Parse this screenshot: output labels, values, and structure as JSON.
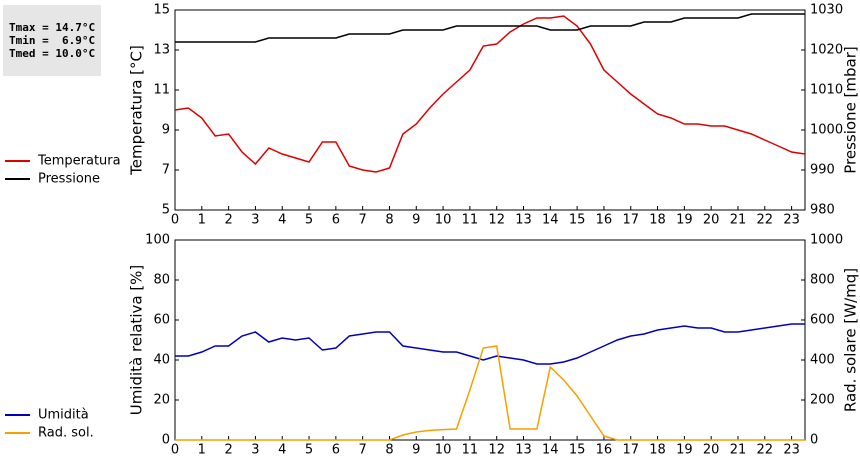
{
  "stats": [
    "Tmax = 14.7°C",
    "Tmin =  6.9°C",
    "Tmed = 10.0°C"
  ],
  "chart_data": [
    {
      "type": "line",
      "x": [
        0,
        0.5,
        1,
        1.5,
        2,
        2.5,
        3,
        3.5,
        4,
        4.5,
        5,
        5.5,
        6,
        6.5,
        7,
        7.5,
        8,
        8.5,
        9,
        9.5,
        10,
        10.5,
        11,
        11.5,
        12,
        12.5,
        13,
        13.5,
        14,
        14.5,
        15,
        15.5,
        16,
        16.5,
        17,
        17.5,
        18,
        18.5,
        19,
        19.5,
        20,
        20.5,
        21,
        21.5,
        22,
        22.5,
        23,
        23.5
      ],
      "xlim": [
        0,
        23.5
      ],
      "xticks": [
        0,
        1,
        2,
        3,
        4,
        5,
        6,
        7,
        8,
        9,
        10,
        11,
        12,
        13,
        14,
        15,
        16,
        17,
        18,
        19,
        20,
        21,
        22,
        23
      ],
      "ylabel": "Temperatura [°C]",
      "ylim": [
        5,
        15
      ],
      "yticks": [
        5,
        7,
        9,
        11,
        13,
        15
      ],
      "y2label": "Pressione [mbar]",
      "y2lim": [
        980,
        1030
      ],
      "y2ticks": [
        980,
        990,
        1000,
        1010,
        1020,
        1030
      ],
      "series": [
        {
          "name": "Temperatura",
          "color": "#dd0000",
          "axis": "y",
          "values": [
            10.0,
            10.1,
            9.6,
            8.7,
            8.8,
            7.9,
            7.3,
            8.1,
            7.8,
            7.6,
            7.4,
            8.4,
            8.4,
            7.2,
            7.0,
            6.9,
            7.1,
            8.8,
            9.3,
            10.1,
            10.8,
            11.4,
            12.0,
            13.2,
            13.3,
            13.9,
            14.3,
            14.6,
            14.6,
            14.7,
            14.2,
            13.3,
            12.0,
            11.4,
            10.8,
            10.3,
            9.8,
            9.6,
            9.3,
            9.3,
            9.2,
            9.2,
            9.0,
            8.8,
            8.5,
            8.2,
            7.9,
            7.8
          ]
        },
        {
          "name": "Pressione",
          "color": "#000000",
          "axis": "y2",
          "values": [
            1022,
            1022,
            1022,
            1022,
            1022,
            1022,
            1022,
            1023,
            1023,
            1023,
            1023,
            1023,
            1023,
            1024,
            1024,
            1024,
            1024,
            1025,
            1025,
            1025,
            1025,
            1026,
            1026,
            1026,
            1026,
            1026,
            1026,
            1026,
            1025,
            1025,
            1025,
            1026,
            1026,
            1026,
            1026,
            1027,
            1027,
            1027,
            1028,
            1028,
            1028,
            1028,
            1028,
            1029,
            1029,
            1029,
            1029,
            1029
          ]
        }
      ]
    },
    {
      "type": "line",
      "x": [
        0,
        0.5,
        1,
        1.5,
        2,
        2.5,
        3,
        3.5,
        4,
        4.5,
        5,
        5.5,
        6,
        6.5,
        7,
        7.5,
        8,
        8.5,
        9,
        9.5,
        10,
        10.5,
        11,
        11.5,
        12,
        12.5,
        13,
        13.5,
        14,
        14.5,
        15,
        15.5,
        16,
        16.5,
        17,
        17.5,
        18,
        18.5,
        19,
        19.5,
        20,
        20.5,
        21,
        21.5,
        22,
        22.5,
        23,
        23.5
      ],
      "xlim": [
        0,
        23.5
      ],
      "xticks": [
        0,
        1,
        2,
        3,
        4,
        5,
        6,
        7,
        8,
        9,
        10,
        11,
        12,
        13,
        14,
        15,
        16,
        17,
        18,
        19,
        20,
        21,
        22,
        23
      ],
      "ylabel": "Umidità relativa [%]",
      "ylim": [
        0,
        100
      ],
      "yticks": [
        0,
        20,
        40,
        60,
        80,
        100
      ],
      "y2label": "Rad. solare [W/mq]",
      "y2lim": [
        0,
        1000
      ],
      "y2ticks": [
        0,
        200,
        400,
        600,
        800,
        1000
      ],
      "series": [
        {
          "name": "Umidità",
          "color": "#0000bb",
          "axis": "y",
          "values": [
            42,
            42,
            44,
            47,
            47,
            52,
            54,
            49,
            51,
            50,
            51,
            45,
            46,
            52,
            53,
            54,
            54,
            47,
            46,
            45,
            44,
            44,
            42,
            40,
            42,
            41,
            40,
            38,
            38,
            39,
            41,
            44,
            47,
            50,
            52,
            53,
            55,
            56,
            57,
            56,
            56,
            54,
            54,
            55,
            56,
            57,
            58,
            58
          ]
        },
        {
          "name": "Rad. sol.",
          "color": "#f5a000",
          "axis": "y2",
          "values": [
            0,
            0,
            0,
            0,
            0,
            0,
            0,
            0,
            0,
            0,
            0,
            0,
            0,
            0,
            0,
            0,
            0,
            25,
            40,
            48,
            52,
            55,
            250,
            460,
            470,
            55,
            55,
            55,
            365,
            300,
            220,
            120,
            20,
            0,
            0,
            0,
            0,
            0,
            0,
            0,
            0,
            0,
            0,
            0,
            0,
            0,
            0,
            0
          ]
        }
      ]
    }
  ]
}
